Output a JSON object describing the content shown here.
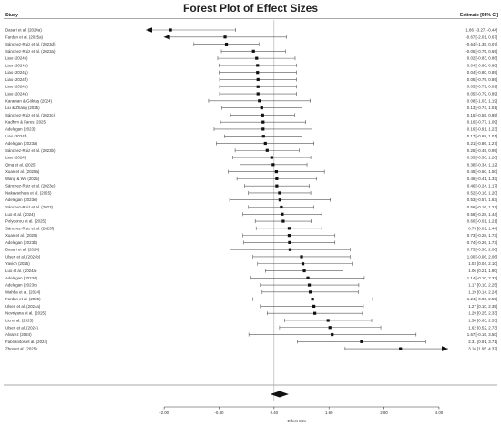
{
  "chart_data": {
    "type": "forest",
    "title": "Forest Plot of Effect Sizes",
    "column_headers": {
      "study": "Study",
      "estimate": "Estimate [95% CI]"
    },
    "xlabel": "Effect Size",
    "xlim": [
      -2.4,
      4.2
    ],
    "xticks": [
      -2.0,
      -0.8,
      0.4,
      1.6,
      2.8,
      4.0
    ],
    "xtick_labels": [
      "-2.00",
      "-0.80",
      "0.40",
      "1.60",
      "2.80",
      "4.00"
    ],
    "reference_line": 0.4,
    "studies": [
      {
        "label": "Dasari et al. (2024a)",
        "est": -1.86,
        "lo": -3.27,
        "hi": -0.44,
        "text": "-1.86 [-3.27, -0.44]",
        "lo_arrow": true
      },
      {
        "label": "Fardan et al. (2025a)",
        "est": -0.67,
        "lo": -2.01,
        "hi": 0.67,
        "text": "-0.67 [-2.01, 0.67]",
        "lo_arrow": true
      },
      {
        "label": "Sánchez-Ruiz et al. (2023d)",
        "est": -0.64,
        "lo": -1.35,
        "hi": 0.07,
        "text": "-0.64 [-1.35, 0.07]"
      },
      {
        "label": "Sánchez-Ruiz et al. (2023a)",
        "est": -0.05,
        "lo": -0.75,
        "hi": 0.65,
        "text": "-0.05 [-0.75, 0.65]"
      },
      {
        "label": "Liao (2024c)",
        "est": 0.02,
        "lo": -0.83,
        "hi": 0.86,
        "text": "0.02 [-0.83, 0.86]"
      },
      {
        "label": "Liao (2024e)",
        "est": 0.04,
        "lo": -0.8,
        "hi": 0.89,
        "text": "0.04 [-0.80, 0.89]"
      },
      {
        "label": "Liao (2024g)",
        "est": 0.04,
        "lo": -0.8,
        "hi": 0.89,
        "text": "0.04 [-0.80, 0.89]"
      },
      {
        "label": "Liao (2024h)",
        "est": 0.05,
        "lo": -0.79,
        "hi": 0.89,
        "text": "0.05 [-0.79, 0.89]"
      },
      {
        "label": "Liao (2024d)",
        "est": 0.05,
        "lo": -0.79,
        "hi": 0.89,
        "text": "0.05 [-0.79, 0.89]"
      },
      {
        "label": "Liao (2024e)",
        "est": 0.05,
        "lo": -0.79,
        "hi": 0.89,
        "text": "0.05 [-0.79, 0.89]"
      },
      {
        "label": "Karaman & Göktaş (2024)",
        "est": 0.08,
        "lo": -1.03,
        "hi": 1.19,
        "text": "0.08 [-1.03, 1.19]"
      },
      {
        "label": "Liu & Zhang (2025)",
        "est": 0.13,
        "lo": -0.74,
        "hi": 1.01,
        "text": "0.13 [-0.74, 1.01]"
      },
      {
        "label": "Sánchez-Ruiz et al. (2023c)",
        "est": 0.15,
        "lo": -0.55,
        "hi": 0.85,
        "text": "0.15 [-0.55, 0.85]"
      },
      {
        "label": "Kadhim & Fares (2025)",
        "est": 0.16,
        "lo": -0.77,
        "hi": 1.09,
        "text": "0.16 [-0.77, 1.09]"
      },
      {
        "label": "Adelegan (2023)",
        "est": 0.16,
        "lo": -0.91,
        "hi": 1.23,
        "text": "0.16 [-0.91, 1.23]"
      },
      {
        "label": "Liao (2024f)",
        "est": 0.17,
        "lo": -0.68,
        "hi": 1.01,
        "text": "0.17 [-0.68, 1.01]"
      },
      {
        "label": "Adelegan (2023a)",
        "est": 0.21,
        "lo": -0.86,
        "hi": 1.27,
        "text": "0.21 [-0.86, 1.27]"
      },
      {
        "label": "Sánchez-Ruiz et al. (2023b)",
        "est": 0.25,
        "lo": -0.45,
        "hi": 0.95,
        "text": "0.25 [-0.45, 0.95]"
      },
      {
        "label": "Liao (2024)",
        "est": 0.35,
        "lo": -0.5,
        "hi": 1.2,
        "text": "0.35 [-0.50, 1.20]"
      },
      {
        "label": "Qing et al. (2025)",
        "est": 0.38,
        "lo": -0.34,
        "hi": 1.12,
        "text": "0.38 [-0.34, 1.12]"
      },
      {
        "label": "Xuan et al. (2025a)",
        "est": 0.45,
        "lo": -0.6,
        "hi": 1.5,
        "text": "0.45 [-0.60, 1.50]"
      },
      {
        "label": "Wang & Wu (2025)",
        "est": 0.46,
        "lo": -0.41,
        "hi": 1.33,
        "text": "0.46 [-0.41, 1.33]"
      },
      {
        "label": "Sánchez-Ruiz et al. (2023e)",
        "est": 0.46,
        "lo": -0.24,
        "hi": 1.17,
        "text": "0.46 [-0.24, 1.17]"
      },
      {
        "label": "Nakavachara et al. (2025)",
        "est": 0.52,
        "lo": -0.16,
        "hi": 1.2,
        "text": "0.52 [-0.16, 1.20]"
      },
      {
        "label": "Adelegan (2023e)",
        "est": 0.53,
        "lo": -0.57,
        "hi": 1.63,
        "text": "0.53 [-0.57, 1.63]"
      },
      {
        "label": "Sánchez-Ruiz et al. (2023)",
        "est": 0.56,
        "lo": -0.16,
        "hi": 1.27,
        "text": "0.56 [-0.16, 1.27]"
      },
      {
        "label": "Luo et al. (2024)",
        "est": 0.58,
        "lo": -0.28,
        "hi": 1.44,
        "text": "0.58 [-0.28, 1.44]"
      },
      {
        "label": "Polydorou et al. (2025)",
        "est": 0.6,
        "lo": -0.01,
        "hi": 1.21,
        "text": "0.60 [-0.01, 1.21]"
      },
      {
        "label": "Sánchez-Ruiz et al. (2023f)",
        "est": 0.73,
        "lo": 0.01,
        "hi": 1.44,
        "text": "0.73 [0.01, 1.44]"
      },
      {
        "label": "Xuan et al. (2025)",
        "est": 0.73,
        "lo": -0.28,
        "hi": 1.73,
        "text": "0.73 [-0.28, 1.73]"
      },
      {
        "label": "Adelegan (2023b)",
        "est": 0.74,
        "lo": -0.26,
        "hi": 1.73,
        "text": "0.74 [-0.26, 1.73]"
      },
      {
        "label": "Dasari et al. (2024)",
        "est": 0.75,
        "lo": -0.56,
        "hi": 2.06,
        "text": "0.75 [-0.56, 2.06]"
      },
      {
        "label": "Ulsen et al. (2024b)",
        "est": 1.0,
        "lo": -0.06,
        "hi": 2.06,
        "text": "1.00 [-0.06, 2.06]"
      },
      {
        "label": "Yavich (2025)",
        "est": 1.03,
        "lo": 0.04,
        "hi": 2.1,
        "text": "1.03 [0.04, 2.10]"
      },
      {
        "label": "Luo et al. (2024a)",
        "est": 1.06,
        "lo": 0.21,
        "hi": 1.9,
        "text": "1.06 [0.21, 1.90]"
      },
      {
        "label": "Adelegan (2023d)",
        "est": 1.14,
        "lo": -0.1,
        "hi": 2.37,
        "text": "1.14 [-0.10, 2.37]"
      },
      {
        "label": "Adelegan (2023c)",
        "est": 1.17,
        "lo": 0.1,
        "hi": 2.25,
        "text": "1.17 [0.10, 2.25]"
      },
      {
        "label": "Wahba et al. (2024)",
        "est": 1.19,
        "lo": 0.14,
        "hi": 2.24,
        "text": "1.19 [0.14, 2.24]"
      },
      {
        "label": "Fardan et al. (2025)",
        "est": 1.24,
        "lo": -0.06,
        "hi": 2.55,
        "text": "1.24 [-0.06, 2.55]"
      },
      {
        "label": "Ulsen et al. (2024a)",
        "est": 1.27,
        "lo": 0.1,
        "hi": 2.35,
        "text": "1.27 [0.10, 2.35]"
      },
      {
        "label": "Novriyana et al. (2025)",
        "est": 1.29,
        "lo": 0.25,
        "hi": 2.33,
        "text": "1.29 [0.25, 2.33]"
      },
      {
        "label": "Liu et al. (2025)",
        "est": 1.58,
        "lo": 0.63,
        "hi": 2.53,
        "text": "1.58 [0.63, 2.53]"
      },
      {
        "label": "Ulsen et al. (2024)",
        "est": 1.62,
        "lo": 0.52,
        "hi": 2.73,
        "text": "1.62 [0.52, 2.73]"
      },
      {
        "label": "Alvarez (2024)",
        "est": 1.67,
        "lo": -0.15,
        "hi": 3.5,
        "text": "1.67 [-0.15, 3.50]"
      },
      {
        "label": "Fabrianitos et al. (2024)",
        "est": 2.31,
        "lo": 0.91,
        "hi": 3.71,
        "text": "2.31 [0.91, 3.71]"
      },
      {
        "label": "Zhou et al. (2025)",
        "est": 3.16,
        "lo": 1.95,
        "hi": 4.37,
        "text": "3.16 [1.95, 4.37]",
        "hi_arrow": true
      }
    ],
    "summary": {
      "est": 0.52,
      "lo": 0.32,
      "hi": 0.72
    }
  }
}
